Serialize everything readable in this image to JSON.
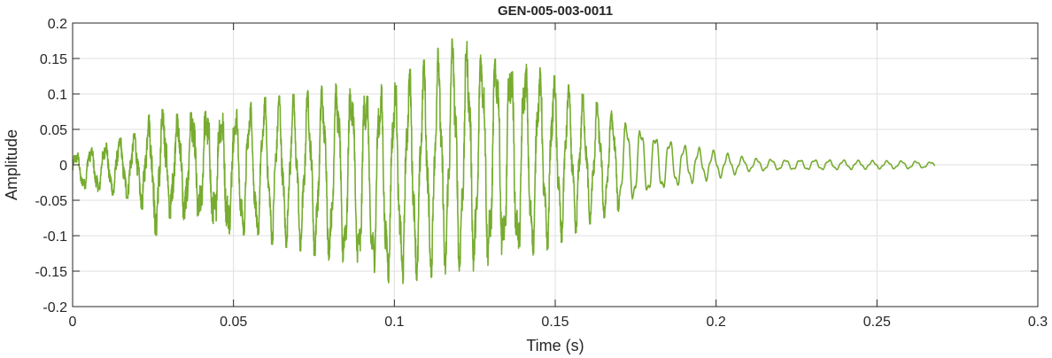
{
  "chart_data": {
    "type": "line",
    "title": "GEN-005-003-0011",
    "xlabel": "Time (s)",
    "ylabel": "Amplitude",
    "xlim": [
      0,
      0.3
    ],
    "ylim": [
      -0.2,
      0.2
    ],
    "x_ticks": [
      0,
      0.05,
      0.1,
      0.15,
      0.2,
      0.25,
      0.3
    ],
    "x_tick_labels": [
      "0",
      "0.05",
      "0.1",
      "0.15",
      "0.2",
      "0.25",
      "0.3"
    ],
    "y_ticks": [
      -0.2,
      -0.15,
      -0.1,
      -0.05,
      0,
      0.05,
      0.1,
      0.15,
      0.2
    ],
    "y_tick_labels": [
      "-0.2",
      "-0.15",
      "-0.1",
      "-0.05",
      "0",
      "0.05",
      "0.1",
      "0.15",
      "0.2"
    ],
    "grid": true,
    "series": [
      {
        "color": "#77ac30",
        "x": [
          0,
          0.01,
          0.02,
          0.026,
          0.03,
          0.04,
          0.05,
          0.06,
          0.07,
          0.08,
          0.09,
          0.095,
          0.1,
          0.11,
          0.115,
          0.119,
          0.125,
          0.13,
          0.14,
          0.15,
          0.16,
          0.17,
          0.18,
          0.19,
          0.2,
          0.21,
          0.22,
          0.23,
          0.24,
          0.25,
          0.26,
          0.268
        ],
        "envelope_max": [
          0.015,
          0.03,
          0.045,
          0.085,
          0.07,
          0.075,
          0.08,
          0.095,
          0.1,
          0.115,
          0.12,
          0.115,
          0.12,
          0.15,
          0.17,
          0.18,
          0.17,
          0.165,
          0.15,
          0.125,
          0.095,
          0.07,
          0.05,
          0.03,
          0.02,
          0.01,
          0.008,
          0.008,
          0.007,
          0.006,
          0.006,
          0.004
        ],
        "envelope_min": [
          -0.03,
          -0.04,
          -0.05,
          -0.1,
          -0.075,
          -0.08,
          -0.1,
          -0.11,
          -0.12,
          -0.135,
          -0.155,
          -0.16,
          -0.17,
          -0.16,
          -0.155,
          -0.15,
          -0.15,
          -0.145,
          -0.135,
          -0.115,
          -0.085,
          -0.065,
          -0.045,
          -0.03,
          -0.02,
          -0.01,
          -0.008,
          -0.008,
          -0.007,
          -0.006,
          -0.006,
          -0.004
        ],
        "dominant_period_s": 0.0045
      }
    ]
  }
}
